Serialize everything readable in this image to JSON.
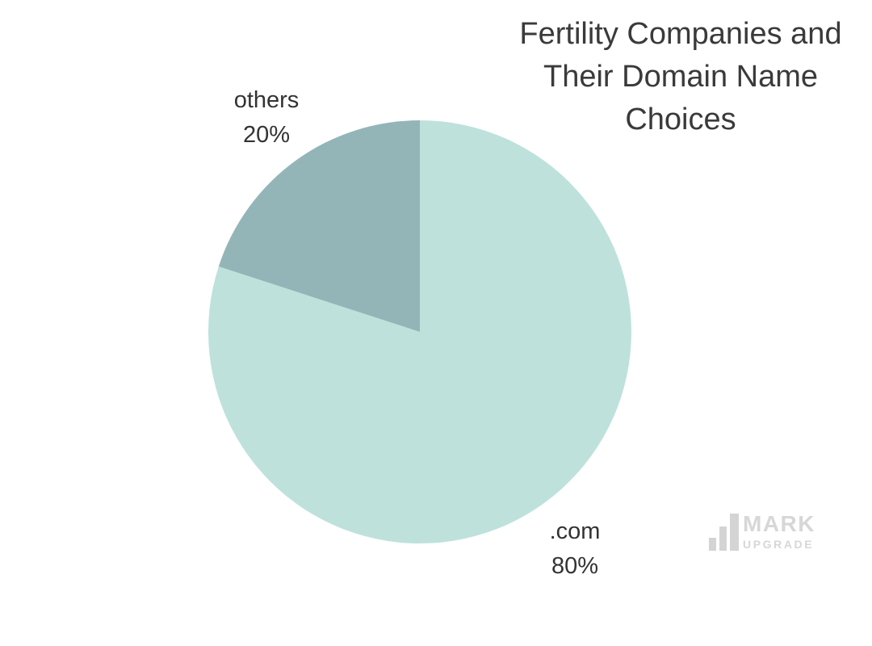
{
  "title": {
    "text": "Fertility Companies and Their Domain Name Choices",
    "lines": [
      "Fertility Companies and",
      "Their Domain Name",
      "Choices"
    ],
    "color": "#3a3a3a"
  },
  "chart_data": {
    "type": "pie",
    "title": "Fertility Companies and Their Domain Name Choices",
    "unit": "percent",
    "start_angle_deg": 0,
    "direction": "clockwise",
    "legend_position": "none",
    "label_style": "outside",
    "slices": [
      {
        "label": ".com",
        "value": 80,
        "percent_label": "80%",
        "color": "#bee1dc"
      },
      {
        "label": "others",
        "value": 20,
        "percent_label": "20%",
        "color": "#93b5b8"
      }
    ]
  },
  "watermark": {
    "brand": "MARK",
    "brand_sub": "UPGRADE",
    "icon": "bar-chart-icon",
    "color": "#d7d7d7"
  }
}
